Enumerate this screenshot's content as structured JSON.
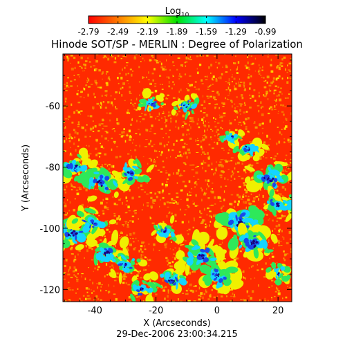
{
  "chart_data": {
    "type": "heatmap",
    "title": "Hinode SOT/SP - MERLIN : Degree of Polarization",
    "date_label": "29-Dec-2006 23:00:34.215",
    "xlabel": "X (Arcseconds)",
    "ylabel": "Y (Arcseconds)",
    "xlim": [
      -50.5,
      24.5
    ],
    "ylim": [
      -124,
      -43
    ],
    "xticks": [
      -40,
      -20,
      0,
      20
    ],
    "yticks": [
      -120,
      -100,
      -80,
      -60
    ],
    "colorbar": {
      "label_base": "Log",
      "label_sub": "10",
      "ticks": [
        "-2.79",
        "-2.49",
        "-2.19",
        "-1.89",
        "-1.59",
        "-1.29",
        "-0.99"
      ],
      "range": [
        -2.79,
        -0.99
      ],
      "colors": [
        "#ff0000",
        "#ff7a00",
        "#ffff00",
        "#00e000",
        "#00ffff",
        "#0000ff",
        "#000000"
      ]
    },
    "map_colors": {
      "background": "#ff2a00",
      "speckle": [
        "#f5a000",
        "#ffe600"
      ],
      "levels": [
        "#f0f000",
        "#2ee85a",
        "#14d4ff",
        "#1a48e8",
        "#1a0078"
      ]
    },
    "features": [
      {
        "x": 7.5,
        "y": -98,
        "weight": 1.0
      },
      {
        "x": -5.0,
        "y": -109,
        "weight": 0.85
      },
      {
        "x": 12.0,
        "y": -105,
        "weight": 0.9
      },
      {
        "x": 0.0,
        "y": -116,
        "weight": 0.75
      },
      {
        "x": 17.0,
        "y": -84,
        "weight": 0.8
      },
      {
        "x": 20.0,
        "y": -92,
        "weight": 0.7
      },
      {
        "x": -46.0,
        "y": -80,
        "weight": 0.7
      },
      {
        "x": -38.0,
        "y": -85,
        "weight": 0.85
      },
      {
        "x": -28.0,
        "y": -82,
        "weight": 0.6
      },
      {
        "x": -47.0,
        "y": -102,
        "weight": 0.85
      },
      {
        "x": -36.0,
        "y": -108,
        "weight": 0.8
      },
      {
        "x": -41.0,
        "y": -98,
        "weight": 0.65
      },
      {
        "x": -17.0,
        "y": -101,
        "weight": 0.45
      },
      {
        "x": -15.0,
        "y": -117,
        "weight": 0.6
      },
      {
        "x": -25.0,
        "y": -120,
        "weight": 0.45
      },
      {
        "x": -22.0,
        "y": -59,
        "weight": 0.35
      },
      {
        "x": -10.0,
        "y": -60,
        "weight": 0.35
      },
      {
        "x": 10.0,
        "y": -74,
        "weight": 0.5
      },
      {
        "x": 5.0,
        "y": -70,
        "weight": 0.3
      },
      {
        "x": 20.0,
        "y": -115,
        "weight": 0.35
      },
      {
        "x": -30.0,
        "y": -112,
        "weight": 0.5
      }
    ]
  }
}
